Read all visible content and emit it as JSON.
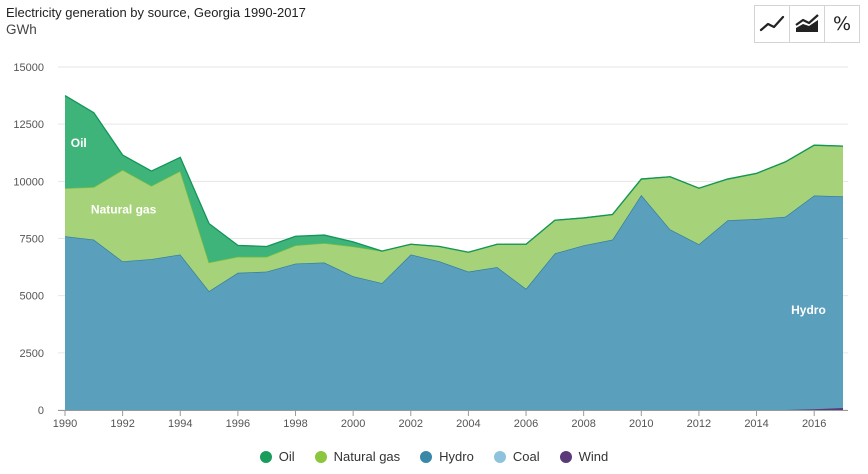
{
  "title": "Electricity generation by source, Georgia 1990-2017",
  "unit": "GWh",
  "toolbar": {
    "line_icon": "line-chart-icon",
    "area_icon": "area-chart-icon",
    "percent_label": "%"
  },
  "legend": [
    {
      "label": "Oil",
      "color": "#1a9d5c"
    },
    {
      "label": "Natural gas",
      "color": "#8cc63f"
    },
    {
      "label": "Hydro",
      "color": "#3a88a8"
    },
    {
      "label": "Coal",
      "color": "#8ec3de"
    },
    {
      "label": "Wind",
      "color": "#5b3a7a"
    }
  ],
  "chart_data": {
    "type": "area",
    "stacked": true,
    "x": [
      1990,
      1991,
      1992,
      1993,
      1994,
      1995,
      1996,
      1997,
      1998,
      1999,
      2000,
      2001,
      2002,
      2003,
      2004,
      2005,
      2006,
      2007,
      2008,
      2009,
      2010,
      2011,
      2012,
      2013,
      2014,
      2015,
      2016,
      2017
    ],
    "xticks": [
      "1990",
      "1992",
      "1994",
      "1996",
      "1998",
      "2000",
      "2002",
      "2004",
      "2006",
      "2008",
      "2010",
      "2012",
      "2014",
      "2016"
    ],
    "yticks": [
      "0",
      "2500",
      "5000",
      "7500",
      "10000",
      "12500",
      "15000"
    ],
    "ylim": [
      0,
      15000
    ],
    "series": [
      {
        "name": "Wind",
        "color": "#5b3a7a",
        "values": [
          0,
          0,
          0,
          0,
          0,
          0,
          0,
          0,
          0,
          0,
          0,
          0,
          0,
          0,
          0,
          0,
          0,
          0,
          0,
          0,
          0,
          0,
          0,
          0,
          0,
          0,
          30,
          90
        ]
      },
      {
        "name": "Coal",
        "color": "#8ec3de",
        "values": [
          0,
          0,
          0,
          0,
          0,
          0,
          0,
          0,
          0,
          0,
          0,
          0,
          0,
          0,
          0,
          0,
          0,
          0,
          0,
          0,
          0,
          0,
          0,
          0,
          0,
          0,
          0,
          0
        ]
      },
      {
        "name": "Hydro",
        "color": "#5a9fbc",
        "values": [
          7600,
          7450,
          6500,
          6600,
          6800,
          5200,
          6000,
          6050,
          6400,
          6450,
          5850,
          5550,
          6800,
          6500,
          6050,
          6250,
          5300,
          6850,
          7200,
          7450,
          9400,
          7900,
          7250,
          8300,
          8350,
          8450,
          9350,
          9250
        ]
      },
      {
        "name": "Natural gas",
        "color": "#a6d27a",
        "values": [
          2100,
          2300,
          4000,
          3200,
          3650,
          1250,
          700,
          650,
          800,
          850,
          1300,
          1400,
          450,
          650,
          850,
          1000,
          1950,
          1450,
          1200,
          1100,
          700,
          2300,
          2450,
          1800,
          2000,
          2400,
          2200,
          2200
        ]
      },
      {
        "name": "Oil",
        "color": "#3fb47a",
        "values": [
          4050,
          3250,
          650,
          650,
          600,
          1700,
          500,
          450,
          400,
          350,
          200,
          0,
          0,
          0,
          0,
          0,
          0,
          0,
          0,
          0,
          0,
          0,
          0,
          0,
          0,
          0,
          0,
          0
        ]
      }
    ],
    "annotations": [
      {
        "text": "Oil",
        "x": 1990.2,
        "y": 11500
      },
      {
        "text": "Natural gas",
        "x": 1990.9,
        "y": 8600
      },
      {
        "text": "Hydro",
        "x": 2015.2,
        "y": 4200
      }
    ]
  }
}
